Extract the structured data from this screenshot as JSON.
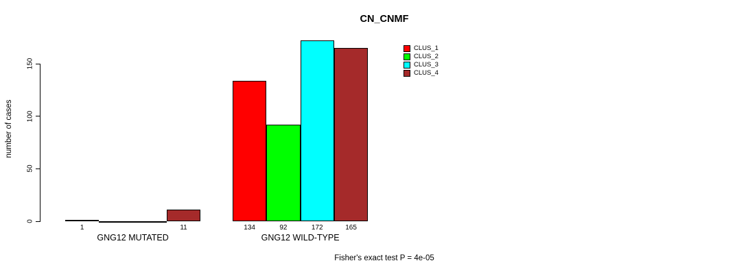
{
  "title": "CN_CNMF",
  "footer": "Fisher's exact test P = 4e-05",
  "chart_data": {
    "type": "bar",
    "title": "CN_CNMF",
    "xlabel": "",
    "ylabel": "number of cases",
    "ylim": [
      0,
      172
    ],
    "yticks": [
      0,
      50,
      100,
      150
    ],
    "grid": false,
    "legend_position": "top-right",
    "categories": [
      "GNG12 MUTATED",
      "GNG12 WILD-TYPE"
    ],
    "series": [
      {
        "name": "CLUS_1",
        "color": "#ff0000",
        "values": [
          1,
          134
        ]
      },
      {
        "name": "CLUS_2",
        "color": "#00ff00",
        "values": [
          0,
          92
        ]
      },
      {
        "name": "CLUS_3",
        "color": "#00ffff",
        "values": [
          0,
          172
        ]
      },
      {
        "name": "CLUS_4",
        "color": "#a52a2a",
        "values": [
          11,
          165
        ]
      }
    ],
    "bar_value_labels": [
      [
        "1",
        "",
        "",
        "11"
      ],
      [
        "134",
        "92",
        "172",
        "165"
      ]
    ],
    "annotation": "Fisher's exact test P = 4e-05"
  },
  "legend": {
    "items": [
      {
        "label": "CLUS_1",
        "color": "#ff0000"
      },
      {
        "label": "CLUS_2",
        "color": "#00ff00"
      },
      {
        "label": "CLUS_3",
        "color": "#00ffff"
      },
      {
        "label": "CLUS_4",
        "color": "#a52a2a"
      }
    ]
  }
}
